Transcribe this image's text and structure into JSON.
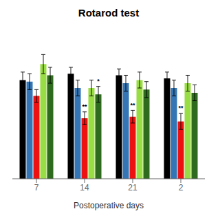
{
  "chart_data": {
    "type": "bar",
    "title": "Rotarod test",
    "xlabel": "Postoperative days",
    "categories": [
      "7",
      "14",
      "21",
      "2"
    ],
    "series": [
      {
        "color": "#000000",
        "values": [
          62,
          66,
          65,
          63
        ],
        "errors": [
          5,
          4,
          4,
          4
        ]
      },
      {
        "color": "#3375B5",
        "values": [
          61,
          57,
          60,
          57
        ],
        "errors": [
          5,
          5,
          5,
          5
        ]
      },
      {
        "color": "#EE1111",
        "values": [
          52,
          38,
          39,
          36
        ],
        "errors": [
          4,
          4,
          4,
          5
        ]
      },
      {
        "color": "#99DD44",
        "values": [
          72,
          57,
          62,
          60
        ],
        "errors": [
          6,
          5,
          5,
          5
        ]
      },
      {
        "color": "#2E6B1E",
        "values": [
          65,
          53,
          56,
          54
        ],
        "errors": [
          5,
          5,
          5,
          5
        ]
      }
    ],
    "annotations": [
      {
        "category": "14",
        "series": 2,
        "text": "**"
      },
      {
        "category": "14",
        "series": 4,
        "text": "*"
      },
      {
        "category": "21",
        "series": 2,
        "text": "**"
      },
      {
        "category": "2",
        "series": 2,
        "text": "**"
      }
    ],
    "ylim": [
      0,
      95
    ],
    "grid": false,
    "tick_labels": "x"
  }
}
